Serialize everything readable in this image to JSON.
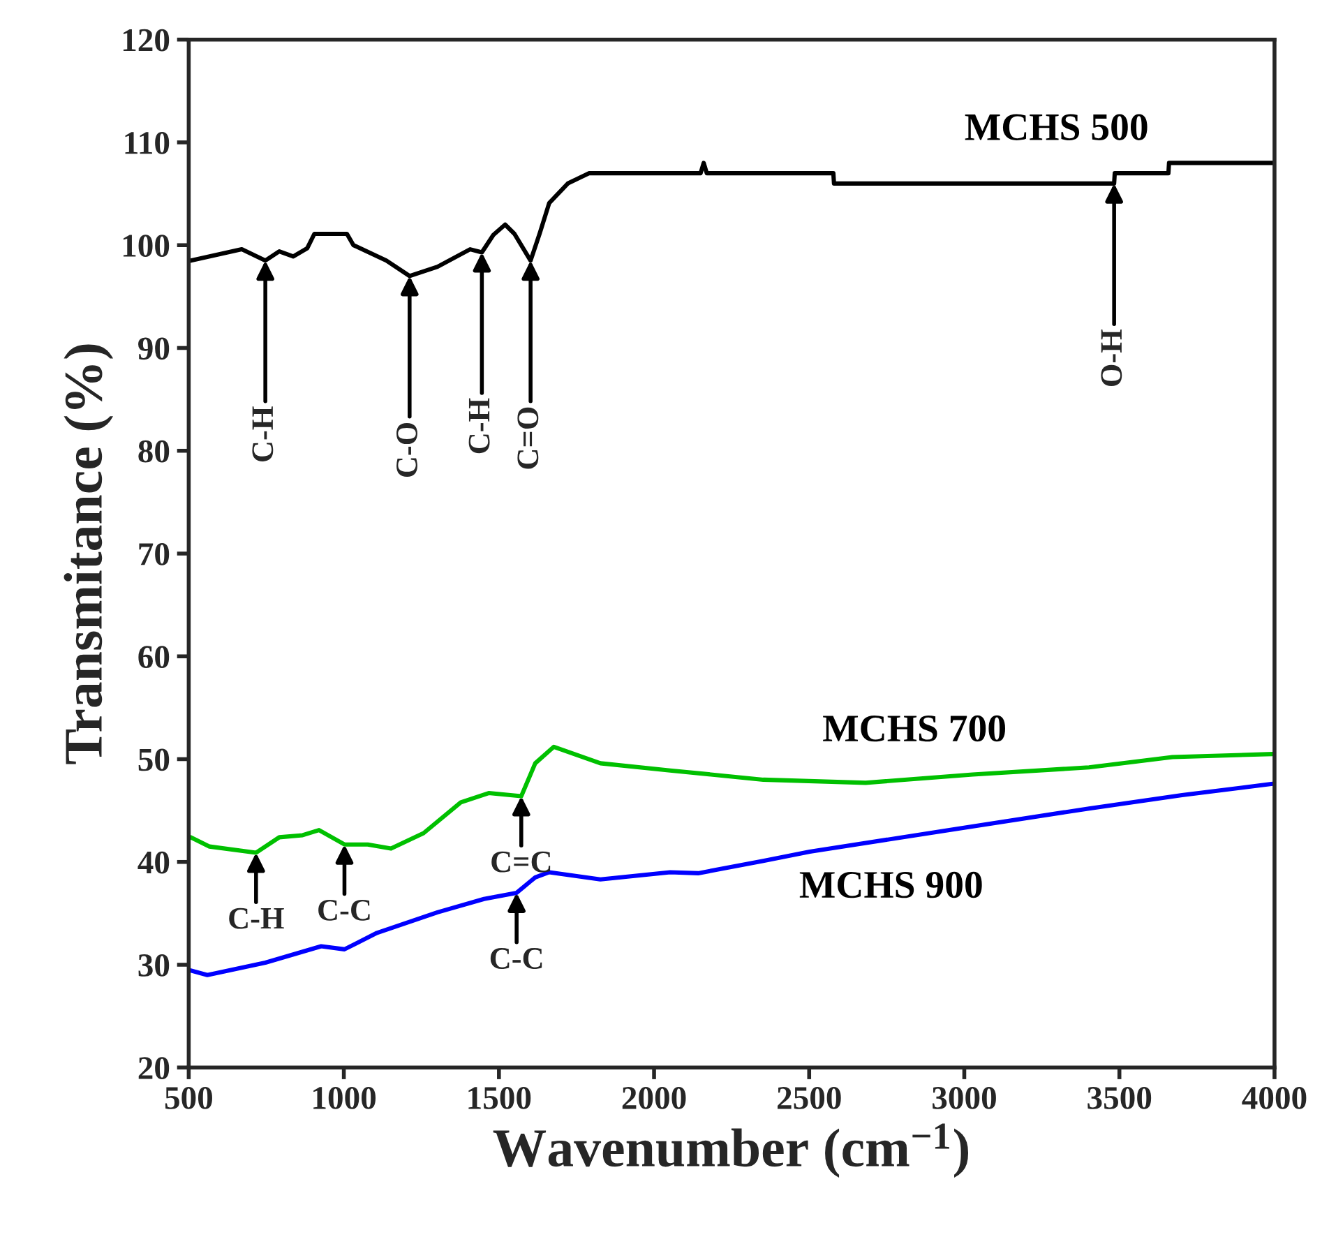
{
  "chart_data": {
    "type": "line",
    "xlabel": "Wavenumber (cm$^{−1}$)",
    "ylabel": "Transmitance (%)",
    "xlim": [
      500,
      4000
    ],
    "ylim": [
      20,
      120
    ],
    "xticks": [
      500,
      1000,
      1500,
      2000,
      2500,
      3000,
      3500,
      4000
    ],
    "yticks": [
      20,
      30,
      40,
      50,
      60,
      70,
      80,
      90,
      100,
      110,
      120
    ],
    "grid": false,
    "legend": false,
    "marker": "none",
    "line_style": "solid",
    "series": [
      {
        "name": "MCHS 500",
        "color": "#000000",
        "x": [
          507,
          671,
          747,
          792,
          837,
          882,
          905,
          1010,
          1031,
          1137,
          1212,
          1302,
          1407,
          1445,
          1482,
          1520,
          1550,
          1602,
          1632,
          1662,
          1722,
          1790,
          2150,
          2160,
          2170,
          2578,
          2580,
          2937,
          2940,
          3483,
          3485,
          3658,
          3660,
          4000
        ],
        "values": [
          98.5,
          99.6,
          98.5,
          99.4,
          98.9,
          99.7,
          101.1,
          101.1,
          100,
          98.5,
          97.0,
          97.9,
          99.6,
          99.3,
          101,
          102,
          101.1,
          98.5,
          101.2,
          104.1,
          106,
          107,
          107,
          108,
          107,
          107,
          106,
          106,
          106,
          106,
          107,
          107,
          108,
          108
        ]
      },
      {
        "name": "MCHS 700",
        "color": "#00c000",
        "x": [
          507,
          567,
          717,
          792,
          867,
          920,
          1002,
          1077,
          1152,
          1257,
          1377,
          1467,
          1572,
          1617,
          1677,
          1827,
          2052,
          2352,
          2682,
          3027,
          3402,
          3671,
          3994
        ],
        "values": [
          42.4,
          41.5,
          40.9,
          42.4,
          42.6,
          43.1,
          41.7,
          41.7,
          41.3,
          42.8,
          45.8,
          46.7,
          46.4,
          49.6,
          51.2,
          49.6,
          48.9,
          48.0,
          47.7,
          48.5,
          49.2,
          50.2,
          50.5
        ]
      },
      {
        "name": "MCHS 900",
        "color": "#0000ff",
        "x": [
          500,
          560,
          747,
          927,
          1002,
          1107,
          1302,
          1452,
          1557,
          1617,
          1662,
          1827,
          2052,
          2142,
          2352,
          2502,
          2952,
          3402,
          3702,
          3994
        ],
        "values": [
          29.5,
          29.0,
          30.2,
          31.8,
          31.5,
          33.1,
          35.1,
          36.4,
          37.0,
          38.5,
          39.0,
          38.3,
          39.0,
          38.9,
          40.1,
          41.0,
          43.1,
          45.2,
          46.5,
          47.6
        ]
      }
    ],
    "annotations": [
      {
        "text": "C-H",
        "x": 747,
        "y": 98.5
      },
      {
        "text": "C-O",
        "x": 1212,
        "y": 97.0
      },
      {
        "text": "C-H",
        "x": 1445,
        "y": 99.3
      },
      {
        "text": "C=O",
        "x": 1602,
        "y": 98.5
      },
      {
        "text": "O-H",
        "x": 3483,
        "y": 106
      },
      {
        "text": "C-H",
        "x": 717,
        "y": 40.9
      },
      {
        "text": "C-C",
        "x": 1002,
        "y": 41.7
      },
      {
        "text": "C=C",
        "x": 1572,
        "y": 46.4
      },
      {
        "text": "C-C",
        "x": 1557,
        "y": 37.0
      }
    ]
  }
}
